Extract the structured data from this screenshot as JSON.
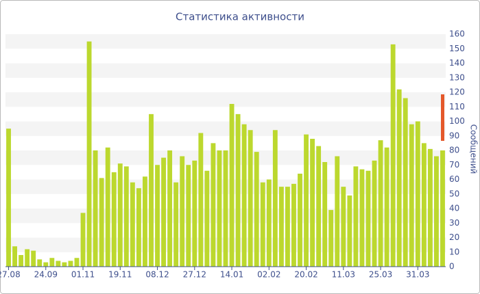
{
  "chart_data": {
    "type": "bar",
    "title": "Статистика активности",
    "y_label": "Сообщений",
    "categories": [
      "27.08",
      null,
      null,
      null,
      null,
      null,
      "24.09",
      null,
      null,
      null,
      null,
      null,
      "01.11",
      null,
      null,
      null,
      null,
      null,
      "19.11",
      null,
      null,
      null,
      null,
      null,
      "08.12",
      null,
      null,
      null,
      null,
      null,
      "27.12",
      null,
      null,
      null,
      null,
      null,
      "14.01",
      null,
      null,
      null,
      null,
      null,
      "02.02",
      null,
      null,
      null,
      null,
      null,
      "20.02",
      null,
      null,
      null,
      null,
      null,
      "11.03",
      null,
      null,
      null,
      null,
      null,
      "25.03",
      null,
      null,
      null,
      null,
      null,
      "31.03",
      null,
      null,
      null,
      null
    ],
    "values": [
      95,
      14,
      8,
      12,
      11,
      5,
      3,
      6,
      4,
      3,
      4,
      6,
      37,
      155,
      80,
      61,
      82,
      65,
      71,
      69,
      58,
      54,
      62,
      105,
      70,
      75,
      80,
      58,
      76,
      70,
      73,
      92,
      66,
      85,
      80,
      80,
      112,
      105,
      98,
      94,
      79,
      58,
      60,
      94,
      55,
      55,
      57,
      64,
      91,
      88,
      83,
      72,
      39,
      76,
      55,
      49,
      69,
      67,
      66,
      73,
      87,
      82,
      153,
      122,
      116,
      98,
      100,
      85,
      81,
      76,
      80
    ],
    "color": "#bcd82e",
    "ylim": [
      0,
      160
    ],
    "yticks": [
      0,
      10,
      20,
      30,
      40,
      50,
      60,
      70,
      80,
      90,
      100,
      110,
      120,
      130,
      140,
      150,
      160
    ],
    "grid": true
  }
}
